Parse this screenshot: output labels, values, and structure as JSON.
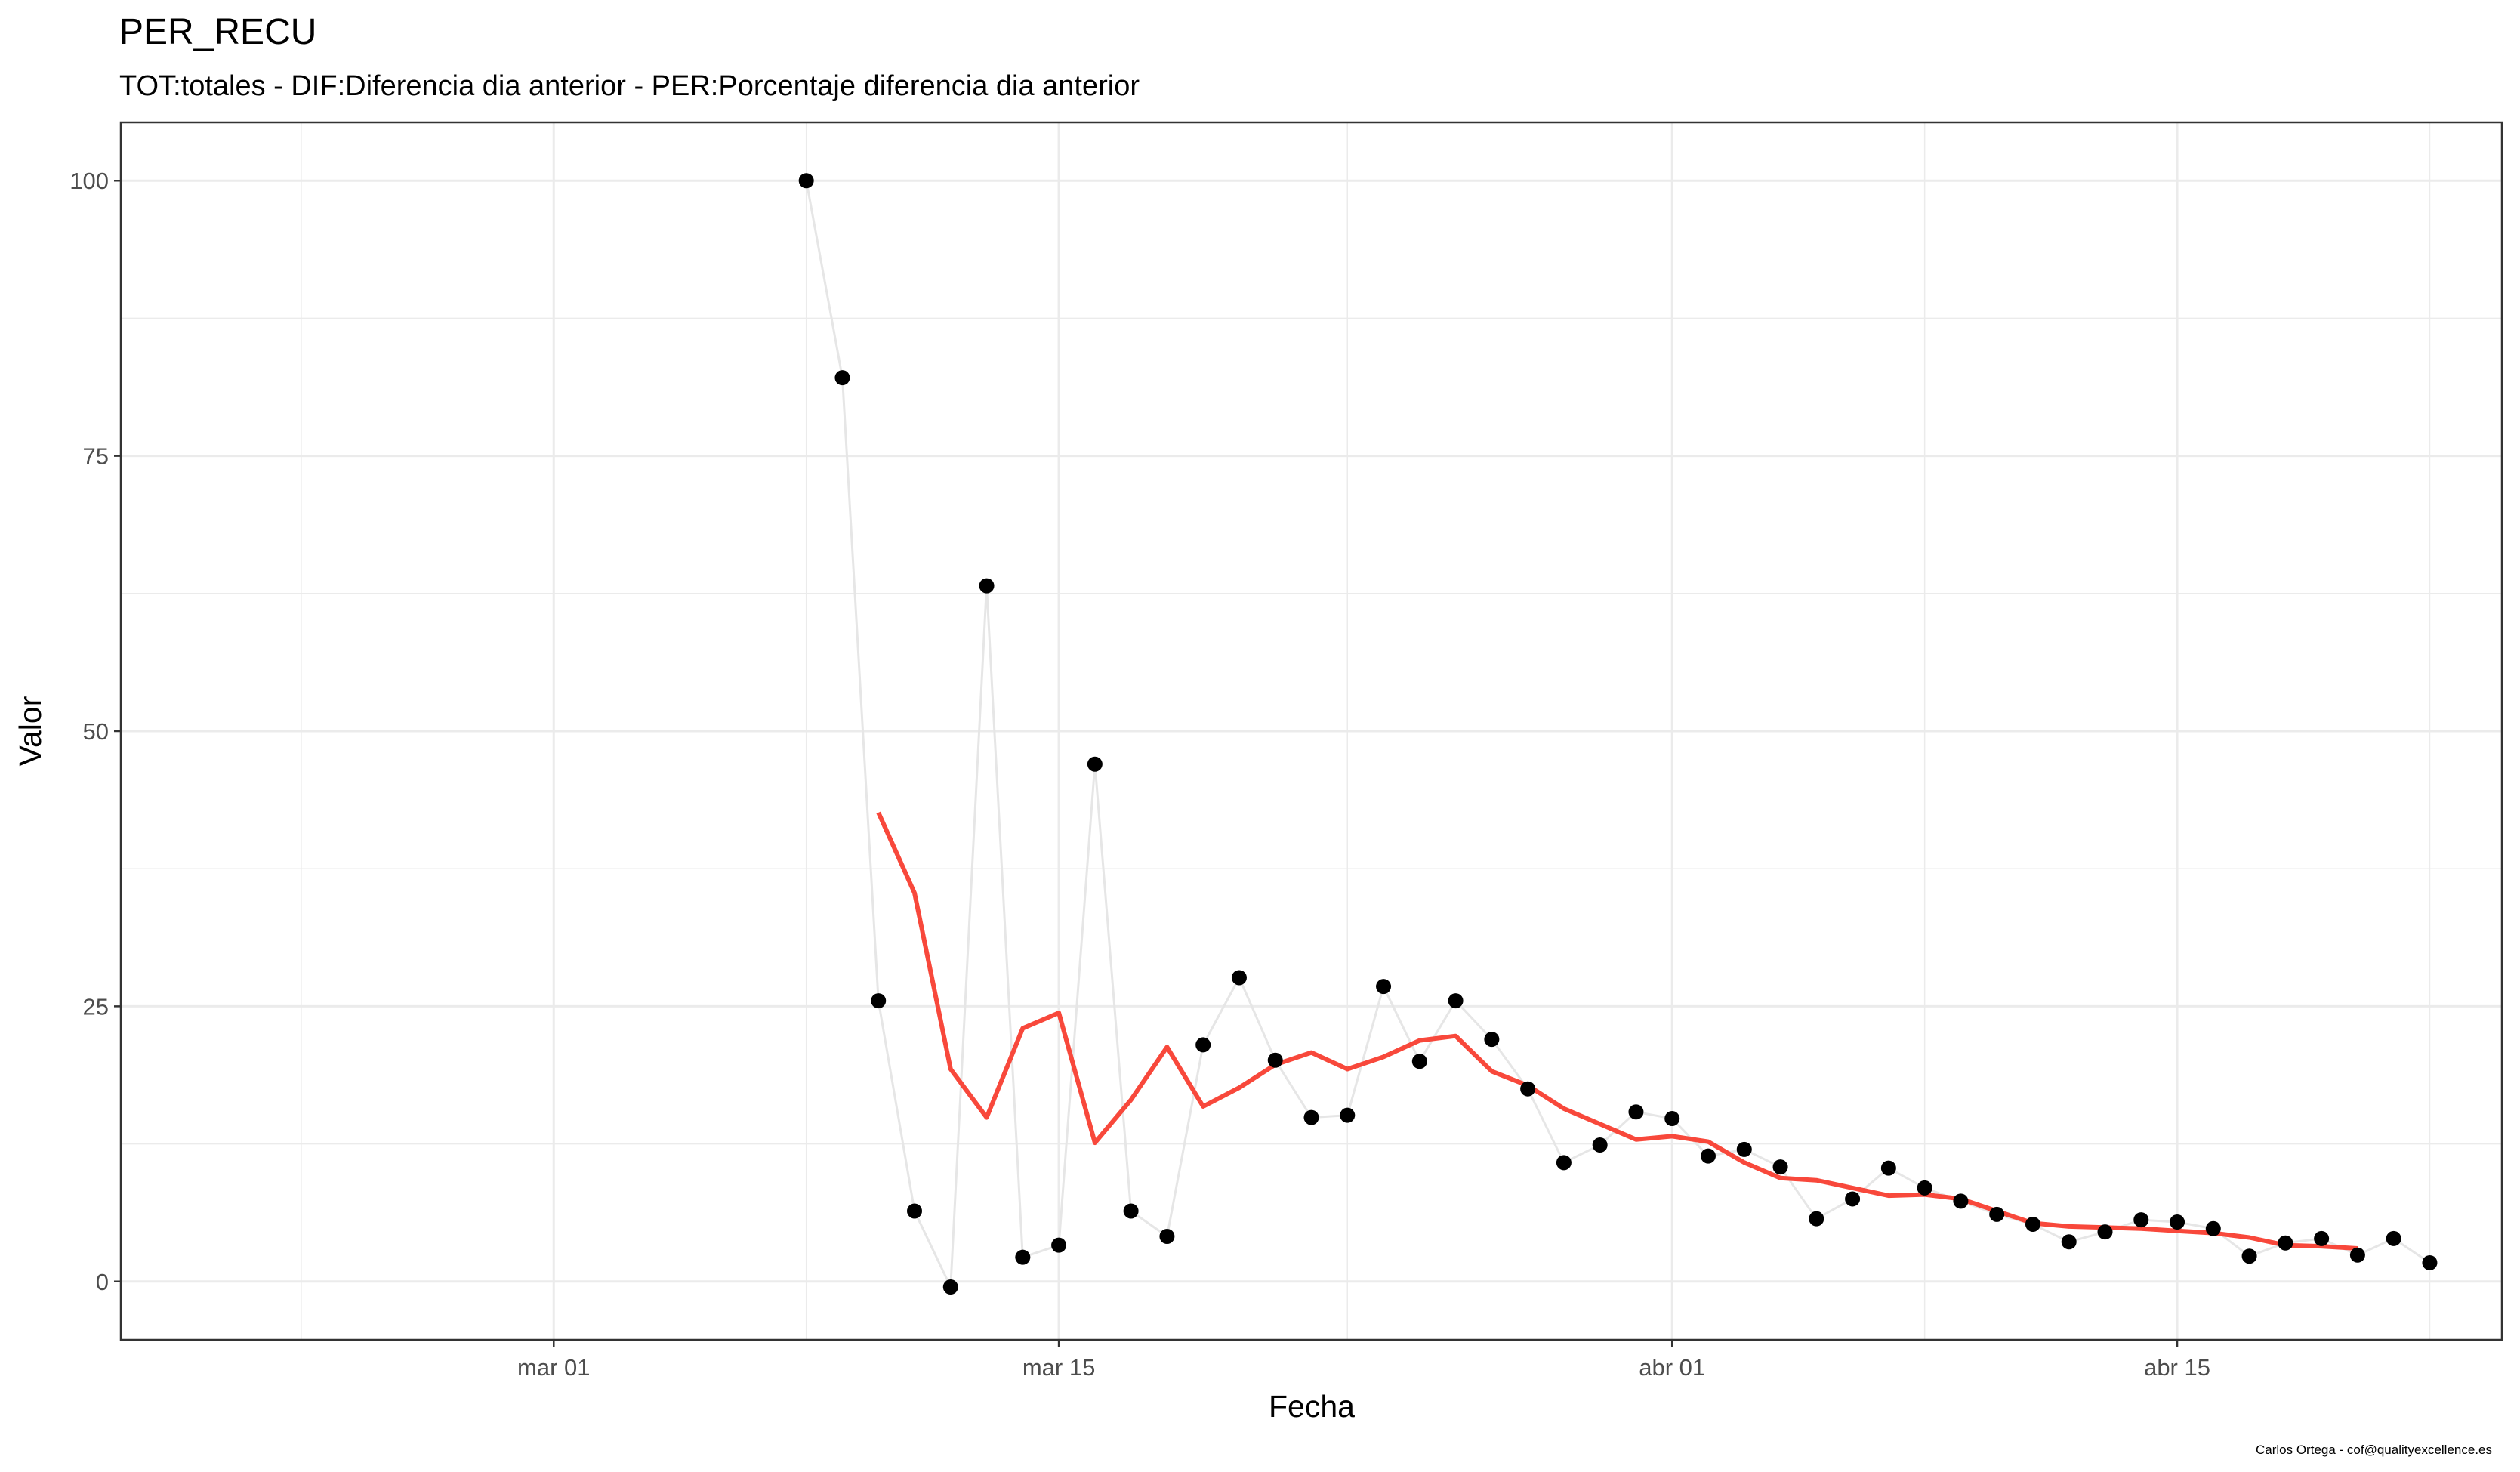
{
  "chart_data": {
    "type": "scatter",
    "title": "PER_RECU",
    "subtitle": "TOT:totales - DIF:Diferencia dia anterior - PER:Porcentaje diferencia dia anterior",
    "xlabel": "Fecha",
    "ylabel": "Valor",
    "caption": "Carlos Ortega - cof@qualityexcellence.es",
    "x_tick_labels": [
      "mar 01",
      "mar 15",
      "abr 01",
      "abr 15"
    ],
    "y_tick_labels": [
      "0",
      "25",
      "50",
      "75",
      "100"
    ],
    "y_ticks": [
      0,
      25,
      50,
      75,
      100
    ],
    "ylim": [
      -5.3,
      105.3
    ],
    "xlim": [
      "2020-02-18",
      "2020-04-24"
    ],
    "x_major_ticks": [
      "2020-03-01",
      "2020-03-15",
      "2020-04-01",
      "2020-04-15"
    ],
    "x_minor_ticks": [
      "2020-02-23",
      "2020-03-08",
      "2020-03-23",
      "2020-04-08",
      "2020-04-22"
    ],
    "grid": true,
    "colors": {
      "points": "#000000",
      "connector_line": "#e6e6e6",
      "trend_line": "#f8483b",
      "grid": "#ebebeb",
      "panel_border": "#333333"
    },
    "series": [
      {
        "type": "scatter",
        "x": [
          "2020-03-08",
          "2020-03-09",
          "2020-03-10",
          "2020-03-11",
          "2020-03-12",
          "2020-03-13",
          "2020-03-14",
          "2020-03-15",
          "2020-03-16",
          "2020-03-17",
          "2020-03-18",
          "2020-03-19",
          "2020-03-20",
          "2020-03-21",
          "2020-03-22",
          "2020-03-23",
          "2020-03-24",
          "2020-03-25",
          "2020-03-26",
          "2020-03-27",
          "2020-03-28",
          "2020-03-29",
          "2020-03-30",
          "2020-03-31",
          "2020-04-01",
          "2020-04-02",
          "2020-04-03",
          "2020-04-04",
          "2020-04-05",
          "2020-04-06",
          "2020-04-07",
          "2020-04-08",
          "2020-04-09",
          "2020-04-10",
          "2020-04-11",
          "2020-04-12",
          "2020-04-13",
          "2020-04-14",
          "2020-04-15",
          "2020-04-16",
          "2020-04-17",
          "2020-04-18",
          "2020-04-19",
          "2020-04-20",
          "2020-04-21",
          "2020-04-22"
        ],
        "values": [
          100,
          82.1,
          25.5,
          6.4,
          -0.5,
          63.2,
          2.2,
          3.3,
          47.0,
          6.4,
          4.1,
          21.5,
          27.6,
          20.1,
          14.9,
          15.1,
          26.8,
          20.0,
          25.5,
          22.0,
          17.5,
          10.8,
          12.4,
          15.4,
          14.8,
          11.4,
          12.0,
          10.4,
          5.7,
          7.5,
          10.3,
          8.5,
          7.3,
          6.1,
          5.2,
          3.6,
          4.5,
          5.6,
          5.4,
          4.8,
          2.3,
          3.5,
          3.9,
          2.4,
          3.9,
          1.7
        ]
      },
      {
        "type": "line",
        "x": [
          "2020-03-10",
          "2020-03-11",
          "2020-03-12",
          "2020-03-13",
          "2020-03-14",
          "2020-03-15",
          "2020-03-16",
          "2020-03-17",
          "2020-03-18",
          "2020-03-19",
          "2020-03-20",
          "2020-03-21",
          "2020-03-22",
          "2020-03-23",
          "2020-03-24",
          "2020-03-25",
          "2020-03-26",
          "2020-03-27",
          "2020-03-28",
          "2020-03-29",
          "2020-03-30",
          "2020-03-31",
          "2020-04-01",
          "2020-04-02",
          "2020-04-03",
          "2020-04-04",
          "2020-04-05",
          "2020-04-06",
          "2020-04-07",
          "2020-04-08",
          "2020-04-09",
          "2020-04-10",
          "2020-04-11",
          "2020-04-12",
          "2020-04-13",
          "2020-04-14",
          "2020-04-15",
          "2020-04-16",
          "2020-04-17",
          "2020-04-18",
          "2020-04-19",
          "2020-04-20"
        ],
        "values": [
          42.6,
          35.3,
          19.3,
          14.9,
          23.0,
          24.4,
          12.6,
          16.5,
          21.3,
          15.9,
          17.6,
          19.7,
          20.8,
          19.3,
          20.4,
          21.9,
          22.3,
          19.1,
          17.8,
          15.7,
          14.3,
          12.9,
          13.2,
          12.7,
          10.8,
          9.4,
          9.2,
          8.5,
          7.8,
          7.9,
          7.5,
          6.4,
          5.3,
          5.0,
          4.9,
          4.8,
          4.6,
          4.4,
          4.0,
          3.3,
          3.2,
          3.0
        ]
      }
    ]
  }
}
